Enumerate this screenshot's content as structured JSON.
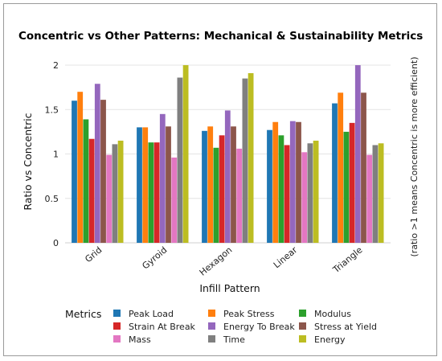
{
  "chart_data": {
    "type": "bar",
    "title": "Concentric vs Other Patterns: Mechanical & Sustainability Metrics",
    "xlabel": "Infill Pattern",
    "ylabel": "Ratio vs Concentric",
    "side_note": "(ratio >1 means Concentric is more efficient)",
    "categories": [
      "Grid",
      "Gyroid",
      "Hexagon",
      "Linear",
      "Triangle"
    ],
    "ylim": [
      0,
      2.1
    ],
    "yticks": [
      0,
      0.5,
      1,
      1.5,
      2
    ],
    "ytick_labels": [
      "0",
      "0.5",
      "1",
      "1.5",
      "2"
    ],
    "grid": true,
    "legend": {
      "title": "Metrics",
      "placement": "bottom"
    },
    "series": [
      {
        "name": "Peak Load",
        "color": "#1f77b4",
        "values": [
          1.6,
          1.3,
          1.26,
          1.27,
          1.57
        ]
      },
      {
        "name": "Peak Stress",
        "color": "#ff7f0e",
        "values": [
          1.7,
          1.3,
          1.31,
          1.36,
          1.69
        ]
      },
      {
        "name": "Modulus",
        "color": "#2ca02c",
        "values": [
          1.39,
          1.13,
          1.07,
          1.21,
          1.25
        ]
      },
      {
        "name": "Strain At Break",
        "color": "#d62728",
        "values": [
          1.17,
          1.13,
          1.21,
          1.1,
          1.35
        ]
      },
      {
        "name": "Energy To Break",
        "color": "#9467bd",
        "values": [
          1.79,
          1.45,
          1.49,
          1.37,
          2.0
        ]
      },
      {
        "name": "Stress at Yield",
        "color": "#8c564b",
        "values": [
          1.61,
          1.31,
          1.31,
          1.36,
          1.69
        ]
      },
      {
        "name": "Mass",
        "color": "#e377c2",
        "values": [
          0.99,
          0.96,
          1.06,
          1.02,
          0.99
        ]
      },
      {
        "name": "Time",
        "color": "#7f7f7f",
        "values": [
          1.11,
          1.86,
          1.85,
          1.12,
          1.1
        ]
      },
      {
        "name": "Energy",
        "color": "#bcbd22",
        "values": [
          1.15,
          2.0,
          1.91,
          1.15,
          1.12
        ]
      }
    ]
  }
}
